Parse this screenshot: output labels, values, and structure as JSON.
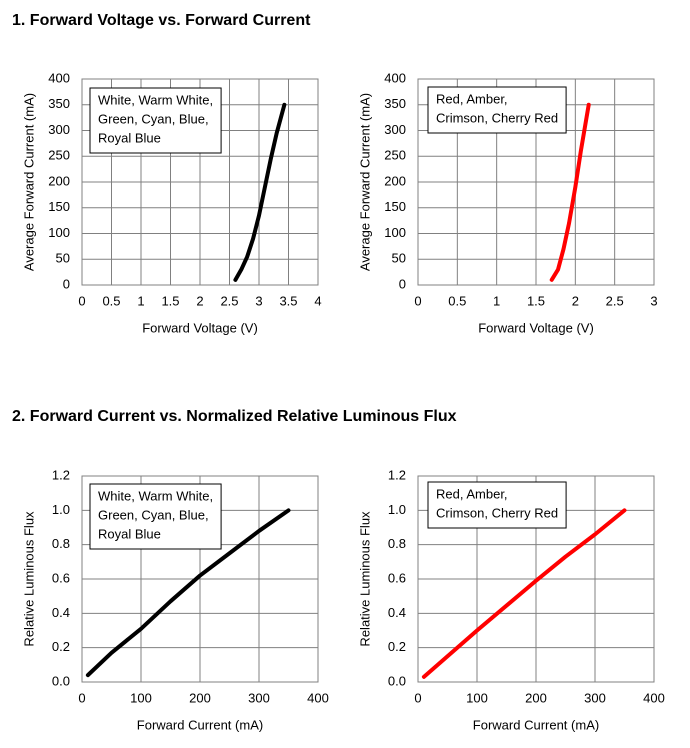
{
  "headings": [
    "1. Forward Voltage vs. Forward Current",
    "2. Forward Current vs. Normalized Relative Luminous Flux"
  ],
  "chart_data": [
    {
      "type": "line",
      "xlabel": "Forward Voltage (V)",
      "ylabel": "Average Forward Current (mA)",
      "annotation": [
        "White, Warm White,",
        "Green, Cyan, Blue,",
        "Royal Blue"
      ],
      "x": [
        2.6,
        2.7,
        2.8,
        2.9,
        3.0,
        3.1,
        3.2,
        3.3,
        3.43
      ],
      "values": [
        10,
        30,
        55,
        90,
        135,
        190,
        245,
        295,
        350
      ],
      "color": "#000000",
      "xlim": [
        0,
        4
      ],
      "xticks": [
        0,
        0.5,
        1,
        1.5,
        2,
        2.5,
        3,
        3.5,
        4
      ],
      "ylim": [
        0,
        400
      ],
      "yticks": [
        0,
        50,
        100,
        150,
        200,
        250,
        300,
        350,
        400
      ],
      "grid": true
    },
    {
      "type": "line",
      "xlabel": "Forward Voltage (V)",
      "ylabel": "Average Forward Current (mA)",
      "annotation": [
        "Red, Amber,",
        "Crimson, Cherry Red"
      ],
      "x": [
        1.7,
        1.78,
        1.85,
        1.92,
        2.0,
        2.07,
        2.17
      ],
      "values": [
        10,
        30,
        70,
        120,
        190,
        260,
        350
      ],
      "color": "#ff0000",
      "xlim": [
        0,
        3
      ],
      "xticks": [
        0,
        0.5,
        1,
        1.5,
        2,
        2.5,
        3
      ],
      "ylim": [
        0,
        400
      ],
      "yticks": [
        0,
        50,
        100,
        150,
        200,
        250,
        300,
        350,
        400
      ],
      "grid": true
    },
    {
      "type": "line",
      "xlabel": "Forward Current (mA)",
      "ylabel": "Relative Luminous Flux",
      "annotation": [
        "White, Warm White,",
        "Green, Cyan, Blue,",
        "Royal Blue"
      ],
      "x": [
        10,
        50,
        100,
        150,
        200,
        250,
        300,
        350
      ],
      "values": [
        0.04,
        0.17,
        0.31,
        0.47,
        0.62,
        0.75,
        0.88,
        1.0
      ],
      "color": "#000000",
      "xlim": [
        0,
        400
      ],
      "xticks": [
        0,
        100,
        200,
        300,
        400
      ],
      "ylim": [
        0,
        1.2
      ],
      "yticks": [
        {
          "value": 0,
          "label": "0.0"
        },
        0.2,
        0.4,
        0.6,
        0.8,
        {
          "value": 1,
          "label": "1.0"
        },
        1.2
      ],
      "grid": true
    },
    {
      "type": "line",
      "xlabel": "Forward Current (mA)",
      "ylabel": "Relative Luminous Flux",
      "annotation": [
        "Red, Amber,",
        "Crimson, Cherry Red"
      ],
      "x": [
        10,
        100,
        200,
        250,
        300,
        350
      ],
      "values": [
        0.03,
        0.3,
        0.59,
        0.73,
        0.86,
        1.0
      ],
      "color": "#ff0000",
      "xlim": [
        0,
        400
      ],
      "xticks": [
        0,
        100,
        200,
        300,
        400
      ],
      "ylim": [
        0,
        1.2
      ],
      "yticks": [
        {
          "value": 0,
          "label": "0.0"
        },
        0.2,
        0.4,
        0.6,
        0.8,
        {
          "value": 1,
          "label": "1.0"
        },
        1.2
      ],
      "grid": true
    }
  ]
}
